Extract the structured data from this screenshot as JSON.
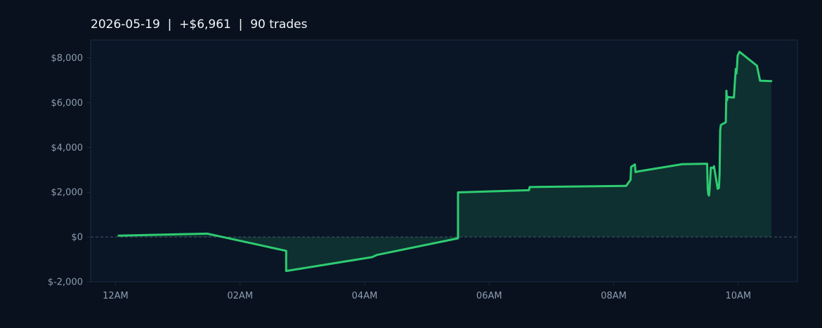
{
  "chart_data": {
    "type": "area",
    "title": "2026-05-19  |  +$6,961  |  90 trades",
    "xlabel": "",
    "ylabel": "",
    "x_unit": "hour",
    "x_ticks": [
      {
        "value": 0,
        "label": "12AM"
      },
      {
        "value": 2,
        "label": "02AM"
      },
      {
        "value": 4,
        "label": "04AM"
      },
      {
        "value": 6,
        "label": "06AM"
      },
      {
        "value": 8,
        "label": "08AM"
      },
      {
        "value": 10,
        "label": "10AM"
      }
    ],
    "y_ticks": [
      {
        "value": -2000,
        "label": "$-2,000"
      },
      {
        "value": 0,
        "label": "$0"
      },
      {
        "value": 2000,
        "label": "$2,000"
      },
      {
        "value": 4000,
        "label": "$4,000"
      },
      {
        "value": 6000,
        "label": "$6,000"
      },
      {
        "value": 8000,
        "label": "$8,000"
      }
    ],
    "xlim": [
      -0.4,
      10.95
    ],
    "ylim": [
      -2000,
      8800
    ],
    "grid": false,
    "zero_line": true,
    "colors": {
      "line": "#2ecc71",
      "fill": "#0f3030",
      "plot_bg": "#0a1626",
      "page_bg": "#08111d",
      "frame": "#1d2c40",
      "zero_line": "#45556a"
    },
    "series": [
      {
        "x": [
          0.05,
          1.47,
          2.74,
          2.74,
          4.12,
          4.2,
          5.5,
          5.5,
          6.64,
          6.65,
          8.2,
          8.27,
          8.28,
          8.34,
          8.35,
          8.4,
          9.1,
          9.5,
          9.51,
          9.52,
          9.53,
          9.54,
          9.56,
          9.6,
          9.61,
          9.67,
          9.69,
          9.7,
          9.71,
          9.72,
          9.75,
          9.8,
          9.81,
          9.82,
          9.83,
          9.84,
          9.86,
          9.93,
          9.95,
          9.96,
          9.97,
          9.98,
          9.99,
          10.02,
          10.3,
          10.35,
          10.53
        ],
        "y": [
          60,
          150,
          -620,
          -1520,
          -900,
          -800,
          -60,
          1990,
          2090,
          2230,
          2280,
          2550,
          3130,
          3240,
          2900,
          2930,
          3250,
          3270,
          2150,
          1900,
          1850,
          2150,
          3100,
          3080,
          3160,
          2150,
          2190,
          2800,
          4750,
          5000,
          5050,
          5120,
          6530,
          6100,
          6250,
          6260,
          6240,
          6230,
          7100,
          7500,
          7300,
          7600,
          8100,
          8270,
          7650,
          6980,
          6961
        ]
      }
    ]
  }
}
